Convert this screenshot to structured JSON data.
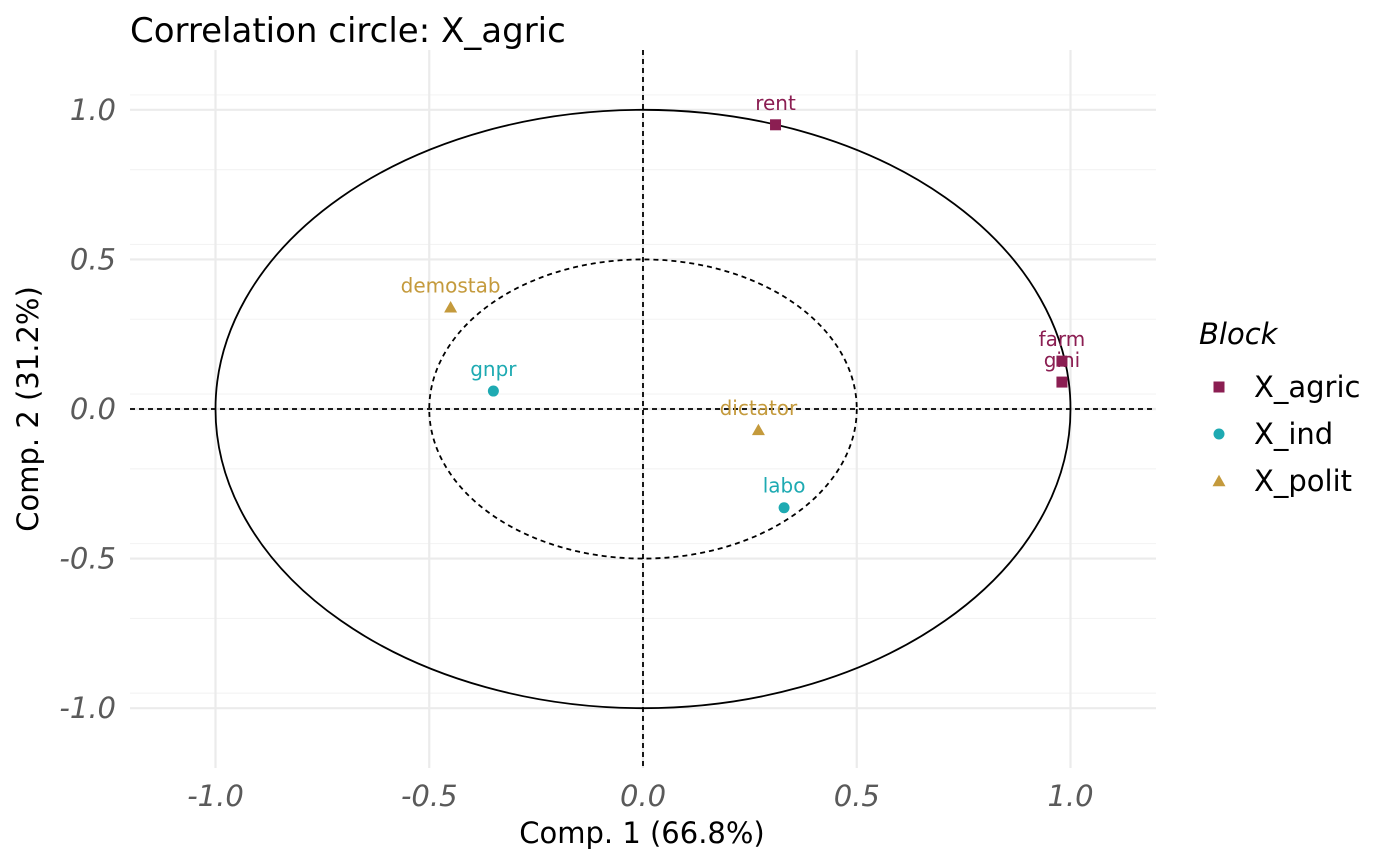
{
  "chart_data": {
    "type": "scatter",
    "title": "Correlation circle: X_agric",
    "xlabel": "Comp. 1 (66.8%)",
    "ylabel": "Comp. 2 (31.2%)",
    "xlim": [
      -1.2,
      1.2
    ],
    "ylim": [
      -1.2,
      1.2
    ],
    "x_ticks": [
      -1.0,
      -0.5,
      0.0,
      0.5,
      1.0
    ],
    "x_tick_labels": [
      "-1.0",
      "-0.5",
      "0.0",
      "0.5",
      "1.0"
    ],
    "y_ticks": [
      -1.0,
      -0.5,
      0.0,
      0.5,
      1.0
    ],
    "y_tick_labels": [
      "-1.0",
      "-0.5",
      "0.0",
      "0.5",
      "1.0"
    ],
    "grid": true,
    "circles": [
      {
        "radius": 1.0,
        "style": "solid"
      },
      {
        "radius": 0.5,
        "style": "dashed"
      }
    ],
    "reference_lines": {
      "x": 0,
      "y": 0,
      "style": "dashed"
    },
    "legend": {
      "title": "Block",
      "position": "right"
    },
    "series": [
      {
        "name": "X_agric",
        "marker": "square",
        "color": "#8b1e52",
        "points": [
          {
            "label": "rent",
            "x": 0.31,
            "y": 0.95
          },
          {
            "label": "farm",
            "x": 0.98,
            "y": 0.16
          },
          {
            "label": "gini",
            "x": 0.98,
            "y": 0.09
          }
        ]
      },
      {
        "name": "X_ind",
        "marker": "circle",
        "color": "#1eaab2",
        "points": [
          {
            "label": "gnpr",
            "x": -0.35,
            "y": 0.06
          },
          {
            "label": "labo",
            "x": 0.33,
            "y": -0.33
          }
        ]
      },
      {
        "name": "X_polit",
        "marker": "triangle",
        "color": "#c49a3c",
        "points": [
          {
            "label": "demostab",
            "x": -0.45,
            "y": 0.34
          },
          {
            "label": "dictator",
            "x": 0.27,
            "y": -0.07
          }
        ]
      }
    ]
  }
}
